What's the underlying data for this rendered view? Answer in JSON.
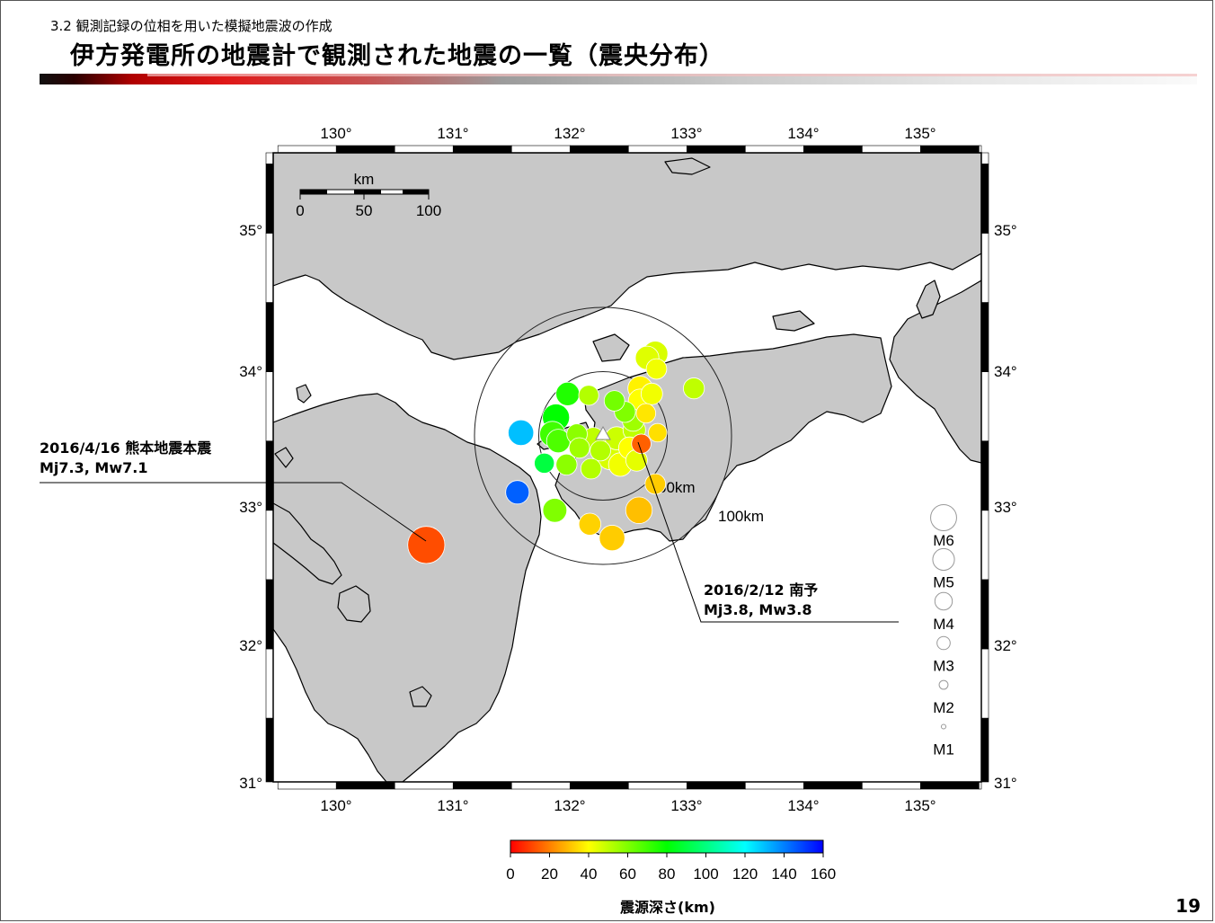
{
  "header": {
    "subtitle": "3.2 観測記録の位相を用いた模擬地震波の作成",
    "title": "伊方発電所の地震計で観測された地震の一覧（震央分布）"
  },
  "map": {
    "lon_ticks": [
      "130°",
      "131°",
      "132°",
      "133°",
      "134°",
      "135°"
    ],
    "lat_ticks": [
      "35°",
      "34°",
      "33°",
      "32°",
      "31°"
    ],
    "scale_bar": {
      "unit": "km",
      "labels": [
        "0",
        "50",
        "100"
      ]
    },
    "rings": [
      "50km",
      "100km"
    ],
    "land_color": "#c8c8c8",
    "site_marker": "triangle-icon"
  },
  "annotations": {
    "kumamoto": {
      "line1": "2016/4/16 熊本地震本震",
      "line2": "Mj7.3,  Mw7.1"
    },
    "nanyo": {
      "line1": "2016/2/12 南予",
      "line2": "Mj3.8,  Mw3.8"
    }
  },
  "magnitude_legend": [
    "M6",
    "M5",
    "M4",
    "M3",
    "M2",
    "M1"
  ],
  "colorbar": {
    "ticks": [
      "0",
      "20",
      "40",
      "60",
      "80",
      "100",
      "120",
      "140",
      "160"
    ],
    "title": "震源深さ(km)",
    "colors": [
      "#ff0000",
      "#ffff00",
      "#00ff00",
      "#00ffff",
      "#0000ff"
    ]
  },
  "page_number": "19",
  "earthquakes": [
    {
      "lon": 130.77,
      "lat": 32.75,
      "depth": 12,
      "mag": 7.3
    },
    {
      "lon": 131.58,
      "lat": 33.56,
      "depth": 130,
      "mag": 5.0
    },
    {
      "lon": 131.55,
      "lat": 33.13,
      "depth": 145,
      "mag": 4.6
    },
    {
      "lon": 131.98,
      "lat": 33.84,
      "depth": 75,
      "mag": 4.6
    },
    {
      "lon": 131.88,
      "lat": 33.67,
      "depth": 80,
      "mag": 5.3
    },
    {
      "lon": 131.85,
      "lat": 33.55,
      "depth": 70,
      "mag": 5.0
    },
    {
      "lon": 131.9,
      "lat": 33.5,
      "depth": 68,
      "mag": 4.6
    },
    {
      "lon": 131.78,
      "lat": 33.34,
      "depth": 90,
      "mag": 3.9
    },
    {
      "lon": 131.97,
      "lat": 33.33,
      "depth": 58,
      "mag": 4.1
    },
    {
      "lon": 131.87,
      "lat": 33.0,
      "depth": 60,
      "mag": 4.7
    },
    {
      "lon": 132.16,
      "lat": 33.83,
      "depth": 52,
      "mag": 3.9
    },
    {
      "lon": 132.38,
      "lat": 33.79,
      "depth": 62,
      "mag": 4.0
    },
    {
      "lon": 132.47,
      "lat": 33.71,
      "depth": 60,
      "mag": 4.1
    },
    {
      "lon": 132.54,
      "lat": 33.65,
      "depth": 55,
      "mag": 4.3
    },
    {
      "lon": 132.55,
      "lat": 33.58,
      "depth": 50,
      "mag": 4.4
    },
    {
      "lon": 132.4,
      "lat": 33.52,
      "depth": 48,
      "mag": 4.5
    },
    {
      "lon": 132.3,
      "lat": 33.48,
      "depth": 45,
      "mag": 4.9
    },
    {
      "lon": 132.2,
      "lat": 33.52,
      "depth": 50,
      "mag": 4.2
    },
    {
      "lon": 132.06,
      "lat": 33.55,
      "depth": 58,
      "mag": 4.0
    },
    {
      "lon": 132.08,
      "lat": 33.45,
      "depth": 55,
      "mag": 4.0
    },
    {
      "lon": 132.26,
      "lat": 33.43,
      "depth": 52,
      "mag": 4.0
    },
    {
      "lon": 132.34,
      "lat": 33.38,
      "depth": 46,
      "mag": 4.7
    },
    {
      "lon": 132.18,
      "lat": 33.3,
      "depth": 52,
      "mag": 4.0
    },
    {
      "lon": 132.43,
      "lat": 33.33,
      "depth": 42,
      "mag": 4.6
    },
    {
      "lon": 132.57,
      "lat": 33.36,
      "depth": 44,
      "mag": 4.2
    },
    {
      "lon": 132.51,
      "lat": 33.45,
      "depth": 40,
      "mag": 4.3
    },
    {
      "lon": 132.6,
      "lat": 33.79,
      "depth": 40,
      "mag": 4.6
    },
    {
      "lon": 132.6,
      "lat": 33.88,
      "depth": 38,
      "mag": 4.8
    },
    {
      "lon": 132.7,
      "lat": 33.84,
      "depth": 42,
      "mag": 4.2
    },
    {
      "lon": 132.65,
      "lat": 33.7,
      "depth": 36,
      "mag": 3.8
    },
    {
      "lon": 132.75,
      "lat": 33.56,
      "depth": 35,
      "mag": 3.6
    },
    {
      "lon": 132.66,
      "lat": 34.1,
      "depth": 45,
      "mag": 4.6
    },
    {
      "lon": 132.73,
      "lat": 34.13,
      "depth": 46,
      "mag": 4.9
    },
    {
      "lon": 132.74,
      "lat": 34.02,
      "depth": 42,
      "mag": 4.0
    },
    {
      "lon": 133.06,
      "lat": 33.88,
      "depth": 50,
      "mag": 4.1
    },
    {
      "lon": 132.73,
      "lat": 33.19,
      "depth": 32,
      "mag": 4.0
    },
    {
      "lon": 132.59,
      "lat": 33.0,
      "depth": 30,
      "mag": 5.2
    },
    {
      "lon": 132.17,
      "lat": 32.9,
      "depth": 33,
      "mag": 4.3
    },
    {
      "lon": 132.36,
      "lat": 32.8,
      "depth": 32,
      "mag": 5.0
    },
    {
      "lon": 132.61,
      "lat": 33.48,
      "depth": 15,
      "mag": 3.8
    }
  ]
}
